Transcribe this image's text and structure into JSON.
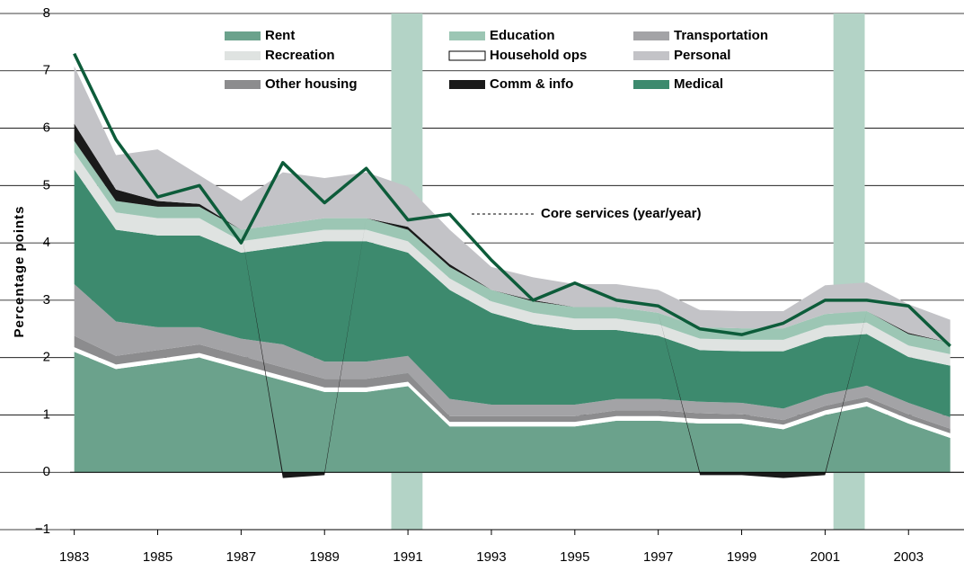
{
  "chart_data": {
    "type": "stacked-area",
    "y_label": "Percentage points",
    "annotation": "Core services (year/year)",
    "x": [
      1983,
      1984,
      1985,
      1986,
      1987,
      1988,
      1989,
      1990,
      1991,
      1992,
      1993,
      1994,
      1995,
      1996,
      1997,
      1998,
      1999,
      2000,
      2001,
      2002,
      2003,
      2004
    ],
    "xlim": [
      1982.9,
      2004.33
    ],
    "xticks": [
      1983,
      1985,
      1987,
      1989,
      1991,
      1993,
      1995,
      1997,
      1999,
      2001,
      2003
    ],
    "ylim": [
      -1,
      8
    ],
    "yticks": [
      {
        "value": -1,
        "label": "−1"
      },
      0,
      1,
      2,
      3,
      4,
      5,
      6,
      7,
      8
    ],
    "grid": true,
    "recessions": [
      [
        1990.6,
        1991.35
      ],
      [
        2001.2,
        2001.95
      ]
    ],
    "recession_color": "#b3d3c6",
    "series": [
      {
        "name": "Rent",
        "color": "#6ba28c",
        "values": [
          2.1,
          1.8,
          1.9,
          2.0,
          1.8,
          1.6,
          1.4,
          1.4,
          1.5,
          0.8,
          0.8,
          0.8,
          0.8,
          0.9,
          0.9,
          0.85,
          0.85,
          0.75,
          1.0,
          1.15,
          0.85,
          0.6
        ]
      },
      {
        "name": "Household ops",
        "color": "#ffffff",
        "values": [
          0.08,
          0.08,
          0.08,
          0.08,
          0.08,
          0.08,
          0.08,
          0.08,
          0.08,
          0.08,
          0.08,
          0.08,
          0.08,
          0.08,
          0.08,
          0.08,
          0.08,
          0.08,
          0.08,
          0.08,
          0.08,
          0.08
        ]
      },
      {
        "name": "Other housing",
        "color": "#8c8c8e",
        "values": [
          0.2,
          0.15,
          0.15,
          0.15,
          0.15,
          0.15,
          0.15,
          0.15,
          0.15,
          0.1,
          0.1,
          0.1,
          0.1,
          0.1,
          0.1,
          0.1,
          0.08,
          0.08,
          0.08,
          0.08,
          0.08,
          0.08
        ]
      },
      {
        "name": "Transportation",
        "color": "#a3a3a6",
        "values": [
          0.9,
          0.6,
          0.4,
          0.3,
          0.3,
          0.4,
          0.3,
          0.3,
          0.3,
          0.3,
          0.2,
          0.2,
          0.2,
          0.2,
          0.2,
          0.2,
          0.2,
          0.2,
          0.2,
          0.2,
          0.2,
          0.2
        ]
      },
      {
        "name": "Medical",
        "color": "#3d8a6e",
        "values": [
          2.0,
          1.6,
          1.6,
          1.6,
          1.5,
          1.7,
          2.1,
          2.1,
          1.8,
          1.9,
          1.6,
          1.4,
          1.3,
          1.2,
          1.1,
          0.9,
          0.9,
          1.0,
          1.0,
          0.9,
          0.8,
          0.9
        ]
      },
      {
        "name": "Recreation",
        "color": "#dfe3e1",
        "values": [
          0.3,
          0.3,
          0.3,
          0.3,
          0.2,
          0.2,
          0.2,
          0.2,
          0.2,
          0.2,
          0.2,
          0.2,
          0.2,
          0.2,
          0.2,
          0.2,
          0.2,
          0.2,
          0.2,
          0.2,
          0.2,
          0.2
        ]
      },
      {
        "name": "Education",
        "color": "#9cc6b4",
        "values": [
          0.2,
          0.2,
          0.2,
          0.2,
          0.2,
          0.2,
          0.2,
          0.2,
          0.2,
          0.2,
          0.2,
          0.2,
          0.2,
          0.2,
          0.2,
          0.2,
          0.2,
          0.2,
          0.2,
          0.2,
          0.2,
          0.2
        ]
      },
      {
        "name": "Comm & info",
        "color": "#1a1a1a",
        "values": [
          0.3,
          0.2,
          0.1,
          0.05,
          0,
          -0.1,
          -0.05,
          0,
          0.05,
          0.05,
          0,
          0.02,
          0,
          0,
          0,
          -0.05,
          -0.05,
          -0.1,
          -0.05,
          0,
          0.02,
          0
        ]
      },
      {
        "name": "Personal",
        "color": "#c3c3c7",
        "values": [
          1.0,
          0.6,
          0.9,
          0.5,
          0.5,
          0.9,
          0.7,
          0.8,
          0.7,
          0.6,
          0.4,
          0.4,
          0.4,
          0.4,
          0.4,
          0.3,
          0.3,
          0.3,
          0.5,
          0.5,
          0.5,
          0.4
        ]
      }
    ],
    "line": {
      "name": "Core services (year/year)",
      "color": "#0d5c3a",
      "values": [
        7.3,
        5.8,
        4.8,
        5.0,
        4.0,
        5.4,
        4.7,
        5.3,
        4.4,
        4.5,
        3.7,
        3.0,
        3.3,
        3.0,
        2.9,
        2.5,
        2.4,
        2.6,
        3.0,
        3.0,
        2.9,
        2.2
      ]
    }
  }
}
